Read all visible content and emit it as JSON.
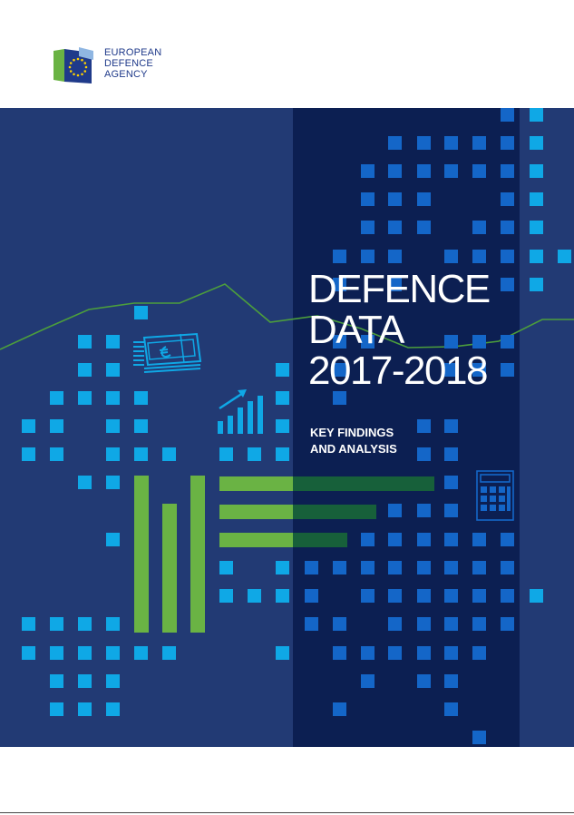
{
  "publisher": {
    "logo_lines": [
      "EUROPEAN",
      "DEFENCE",
      "AGENCY"
    ]
  },
  "cover": {
    "title_lines": [
      "DEFENCE",
      "DATA",
      "2017-2018"
    ],
    "subtitle_lines": [
      "KEY FINDINGS",
      "AND ANALYSIS"
    ]
  },
  "colors": {
    "background": "#223a74",
    "dark_band": "#0c1f52",
    "square_light": "#0fa8e6",
    "square_mid": "#1466c8",
    "green": "#6ab344",
    "green_dark": "#17603a",
    "text": "#ffffff"
  },
  "icons": [
    "eu-flag-icon",
    "euro-banknotes-icon",
    "growth-chart-icon",
    "calculator-icon"
  ]
}
